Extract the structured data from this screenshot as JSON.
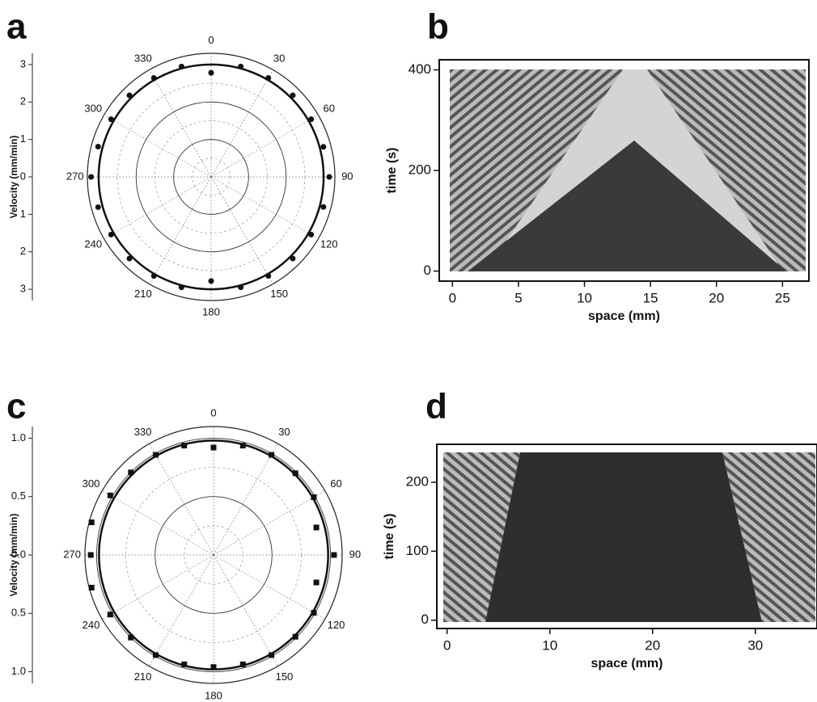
{
  "chart_data": [
    {
      "type": "polar",
      "panel_label": "a",
      "y_label": "Velocity (mm/min)",
      "angles": [
        0,
        15,
        30,
        45,
        60,
        75,
        90,
        105,
        120,
        135,
        150,
        165,
        180,
        195,
        210,
        225,
        240,
        255,
        270,
        285,
        300,
        315,
        330,
        345
      ],
      "values": [
        2.78,
        3.05,
        3.05,
        3.08,
        3.08,
        3.1,
        3.15,
        3.1,
        3.08,
        3.08,
        3.05,
        3.05,
        2.78,
        3.05,
        3.05,
        3.08,
        3.08,
        3.12,
        3.2,
        3.12,
        3.08,
        3.08,
        3.05,
        3.05
      ],
      "angle_ticks": [
        0,
        30,
        60,
        90,
        120,
        150,
        180,
        210,
        240,
        270,
        300,
        330
      ],
      "rlim": [
        0,
        3.3
      ],
      "rticks": [
        0,
        1,
        2,
        3
      ],
      "fit_radius": 3,
      "marker": "circle",
      "color": "#111111"
    },
    {
      "type": "kymograph",
      "panel_label": "b",
      "x_label": "space (mm)",
      "y_label": "time (s)",
      "xlim": [
        -1,
        27
      ],
      "xticks": [
        0,
        5,
        10,
        15,
        20,
        25
      ],
      "ylim": [
        -20,
        420
      ],
      "yticks": [
        0,
        200,
        400
      ]
    },
    {
      "type": "polar",
      "panel_label": "c",
      "y_label": "Velocity (mm/min)",
      "angles": [
        0,
        15,
        30,
        45,
        60,
        75,
        90,
        105,
        120,
        135,
        150,
        165,
        180,
        195,
        210,
        225,
        240,
        255,
        270,
        285,
        300,
        315,
        330,
        345
      ],
      "values": [
        0.92,
        0.97,
        0.99,
        0.99,
        0.99,
        0.91,
        1.03,
        0.91,
        0.99,
        0.99,
        0.99,
        0.97,
        0.96,
        0.97,
        0.99,
        1.0,
        1.02,
        1.08,
        1.05,
        1.08,
        1.02,
        1.0,
        0.99,
        0.97
      ],
      "angle_ticks": [
        0,
        30,
        60,
        90,
        120,
        150,
        180,
        210,
        240,
        270,
        300,
        330
      ],
      "rlim": [
        0,
        1.1
      ],
      "rticks": [
        {
          "value": 0,
          "label": "0.0"
        },
        0.5,
        {
          "value": 1,
          "label": "1.0"
        }
      ],
      "fit_radius": 0.98,
      "marker": "square",
      "color": "#111111"
    },
    {
      "type": "kymograph",
      "panel_label": "d",
      "x_label": "space (mm)",
      "y_label": "time (s)",
      "xlim": [
        -1,
        36
      ],
      "xticks": [
        0,
        10,
        20,
        30
      ],
      "ylim": [
        -12,
        255
      ],
      "yticks": [
        0,
        100,
        200
      ]
    }
  ]
}
